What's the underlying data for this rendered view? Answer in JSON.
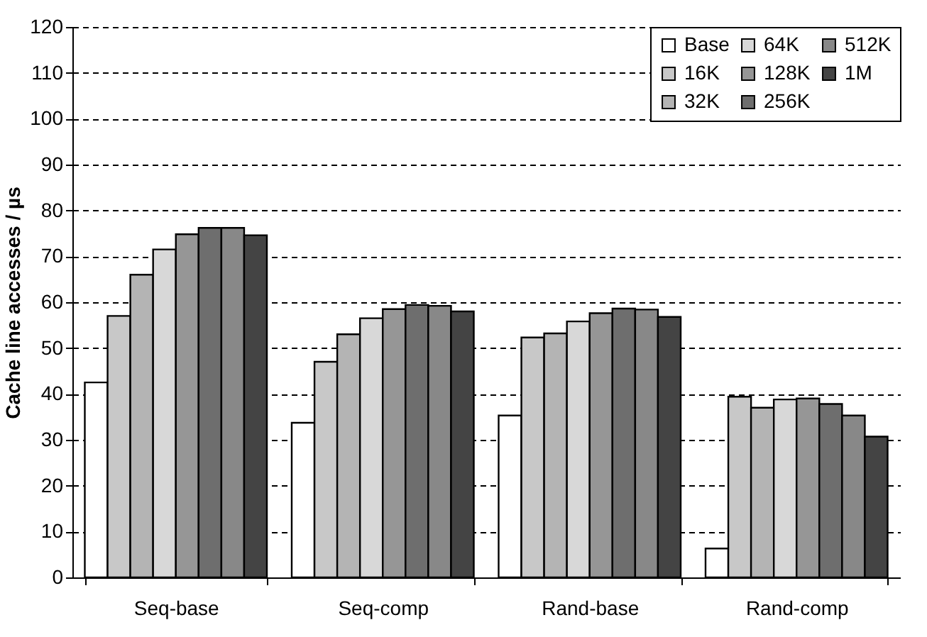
{
  "chart_data": {
    "type": "bar",
    "ylabel": "Cache line accesses / µs",
    "categories": [
      "Seq-base",
      "Seq-comp",
      "Rand-base",
      "Rand-comp"
    ],
    "series": [
      {
        "name": "Base",
        "color": "#ffffff",
        "values": [
          42.5,
          33.7,
          35.3,
          6.3
        ]
      },
      {
        "name": "16K",
        "color": "#c8c8c8",
        "values": [
          57,
          47,
          52.3,
          39.4
        ]
      },
      {
        "name": "32K",
        "color": "#b4b4b4",
        "values": [
          66,
          53,
          53.2,
          37
        ]
      },
      {
        "name": "64K",
        "color": "#d8d8d8",
        "values": [
          71.5,
          56.5,
          55.8,
          38.8
        ]
      },
      {
        "name": "128K",
        "color": "#969696",
        "values": [
          74.8,
          58.5,
          57.6,
          39
        ]
      },
      {
        "name": "256K",
        "color": "#6e6e6e",
        "values": [
          76.2,
          59.4,
          58.6,
          37.8
        ]
      },
      {
        "name": "512K",
        "color": "#888888",
        "values": [
          76.2,
          59.2,
          58.4,
          35.3
        ]
      },
      {
        "name": "1M",
        "color": "#444444",
        "values": [
          74.6,
          58,
          56.8,
          30.7
        ]
      }
    ],
    "ylim": [
      0,
      120
    ],
    "yticks": [
      0,
      10,
      20,
      30,
      40,
      50,
      60,
      70,
      80,
      90,
      100,
      110,
      120
    ],
    "grid": "y",
    "legend": "top right"
  }
}
